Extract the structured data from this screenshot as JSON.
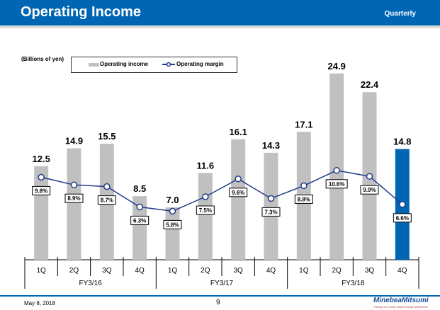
{
  "header": {
    "title": "Operating Income",
    "period": "Quarterly"
  },
  "footer": {
    "date": "May 8, 2018",
    "page": "9",
    "logo": "MinebeaMitsumi",
    "tagline": "Passion to Create Value through Difference"
  },
  "chart_data": {
    "type": "bar",
    "unit_label": "(Billions of yen)",
    "categories": [
      "1Q",
      "2Q",
      "3Q",
      "4Q",
      "1Q",
      "2Q",
      "3Q",
      "4Q",
      "1Q",
      "2Q",
      "3Q",
      "4Q"
    ],
    "groups": [
      "FY3/16",
      "FY3/17",
      "FY3/18"
    ],
    "series": [
      {
        "name": "Operating income",
        "type": "bar",
        "values": [
          12.5,
          14.9,
          15.5,
          8.5,
          7.0,
          11.6,
          16.1,
          14.3,
          17.1,
          24.9,
          22.4,
          14.8
        ],
        "labels": [
          "12.5",
          "14.9",
          "15.5",
          "8.5",
          "7.0",
          "11.6",
          "16.1",
          "14.3",
          "17.1",
          "24.9",
          "22.4",
          "14.8"
        ],
        "color": "#c0c0c0",
        "highlight_color": "#0066b3",
        "highlight_index": 11
      },
      {
        "name": "Operating margin",
        "type": "line",
        "values": [
          9.8,
          8.9,
          8.7,
          6.3,
          5.8,
          7.5,
          9.6,
          7.3,
          8.8,
          10.6,
          9.9,
          6.6
        ],
        "labels": [
          "9.8%",
          "8.9%",
          "8.7%",
          "6.3%",
          "5.8%",
          "7.5%",
          "9.6%",
          "7.3%",
          "8.8%",
          "10.6%",
          "9.9%",
          "6.6%"
        ],
        "color": "#1f3c88"
      }
    ]
  }
}
